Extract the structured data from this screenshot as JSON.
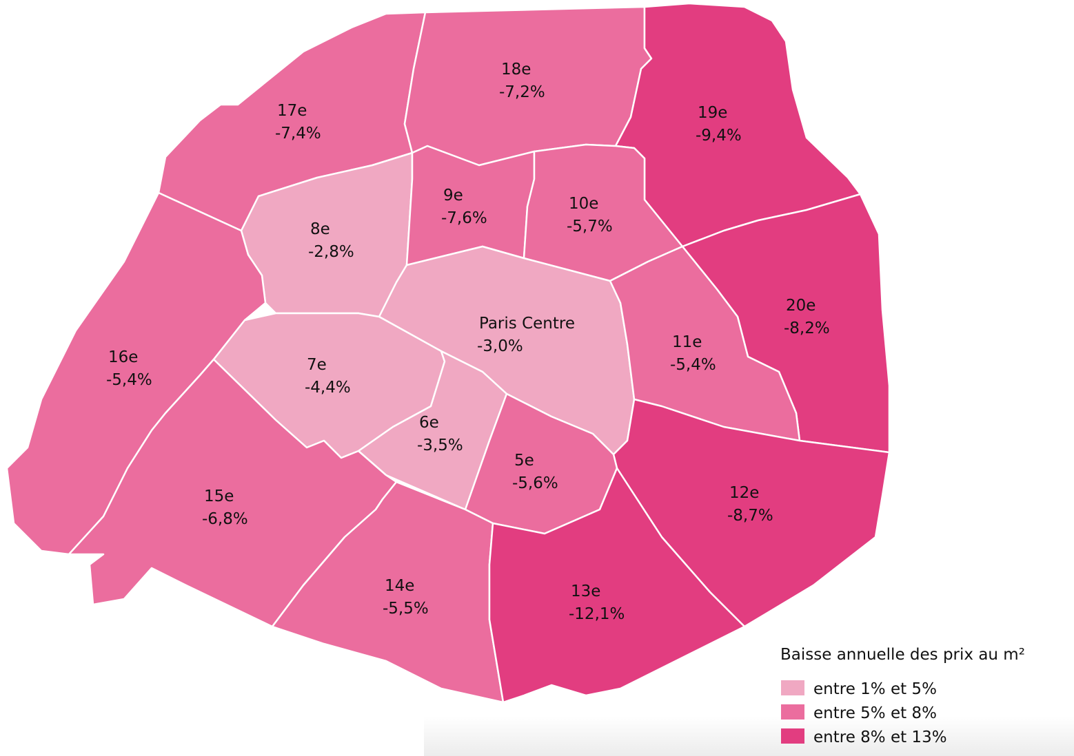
{
  "districts": [
    {
      "name": "17e",
      "label": "-7,4%",
      "color": "#eb6d9e"
    },
    {
      "name": "18e",
      "label": "-7,2%",
      "color": "#eb6d9e"
    },
    {
      "name": "19e",
      "label": "-9,4%",
      "color": "#e23d80"
    },
    {
      "name": "20e",
      "label": "-8,2%",
      "color": "#e23d80"
    },
    {
      "name": "8e",
      "label": "-2,8%",
      "color": "#f0a8c2"
    },
    {
      "name": "9e",
      "label": "-7,6%",
      "color": "#eb6d9e"
    },
    {
      "name": "10e",
      "label": "-5,7%",
      "color": "#eb6d9e"
    },
    {
      "name": "Paris Centre",
      "label": "-3,0%",
      "color": "#f0a8c2"
    },
    {
      "name": "11e",
      "label": "-5,4%",
      "color": "#eb6d9e"
    },
    {
      "name": "12e",
      "label": "-8,7%",
      "color": "#e23d80"
    },
    {
      "name": "16e",
      "label": "-5,4%",
      "color": "#eb6d9e"
    },
    {
      "name": "7e",
      "label": "-4,4%",
      "color": "#f0a8c2"
    },
    {
      "name": "6e",
      "label": "-3,5%",
      "color": "#f0a8c2"
    },
    {
      "name": "5e",
      "label": "-5,6%",
      "color": "#eb6d9e"
    },
    {
      "name": "15e",
      "label": "-6,8%",
      "color": "#eb6d9e"
    },
    {
      "name": "14e",
      "label": "-5,5%",
      "color": "#eb6d9e"
    },
    {
      "name": "13e",
      "label": "-12,1%",
      "color": "#e23d80"
    }
  ],
  "legend": {
    "title": "Baisse annuelle des prix au m²",
    "items": [
      {
        "label": "entre 1% et 5%",
        "color": "#f0a8c2"
      },
      {
        "label": "entre 5% et 8%",
        "color": "#eb6d9e"
      },
      {
        "label": "entre 8% et 13%",
        "color": "#e23d80"
      }
    ]
  }
}
